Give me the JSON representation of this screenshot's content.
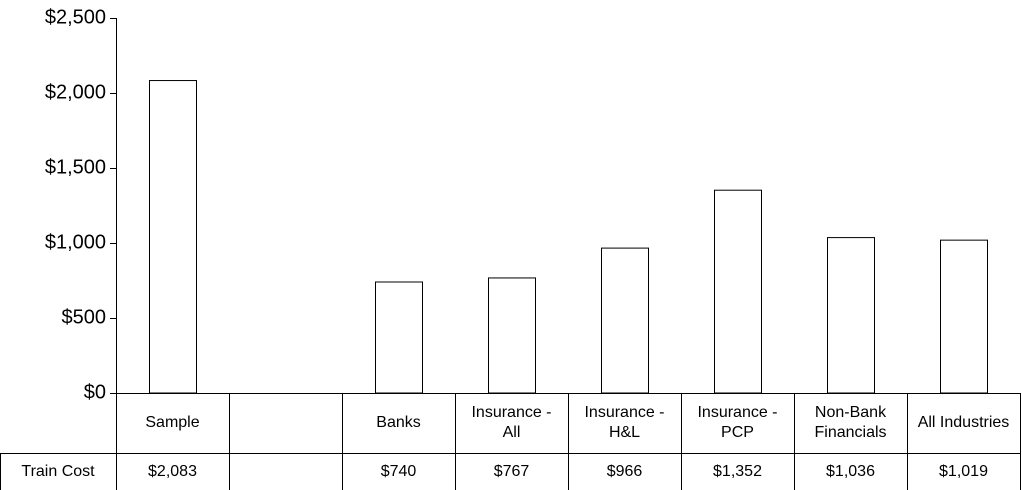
{
  "chart_data": {
    "type": "bar",
    "categories": [
      "Sample",
      null,
      "Banks",
      "Insurance - All",
      "Insurance - H&L",
      "Insurance - PCP",
      "Non-Bank Financials",
      "All Industries"
    ],
    "series": [
      {
        "name": "Train Cost",
        "color": "#ffffff",
        "values": [
          2083,
          null,
          740,
          767,
          966,
          1352,
          1036,
          1019
        ],
        "value_labels": [
          "$2,083",
          null,
          "$740",
          "$767",
          "$966",
          "$1,352",
          "$1,036",
          "$1,019"
        ]
      }
    ],
    "ylim": [
      0,
      2500
    ],
    "yticks": [
      {
        "value": 0,
        "label": "$0"
      },
      {
        "value": 500,
        "label": "$500"
      },
      {
        "value": 1000,
        "label": "$1,000"
      },
      {
        "value": 1500,
        "label": "$1,500"
      },
      {
        "value": 2000,
        "label": "$2,000"
      },
      {
        "value": 2500,
        "label": "$2,500"
      }
    ],
    "grid": false
  }
}
